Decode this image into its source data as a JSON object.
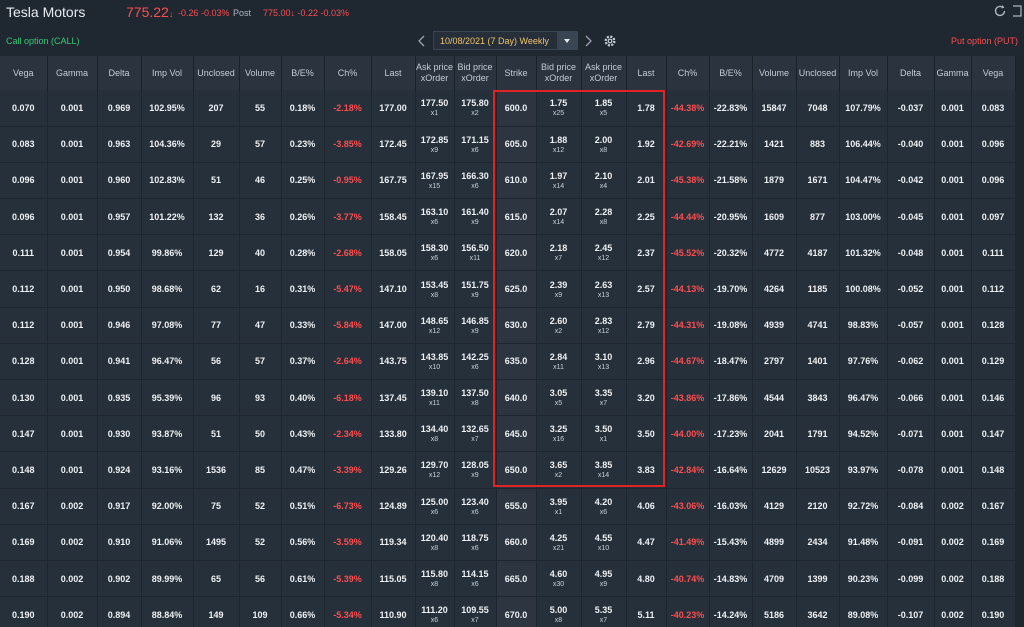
{
  "header": {
    "title": "Tesla Motors",
    "price": "775.22",
    "change": "-0.26 -0.03%",
    "post_label": "Post",
    "post_price": "775.00↓ -0.22 -0.03%"
  },
  "options_bar": {
    "call_label": "Call option  (CALL)",
    "put_label": "Put option  (PUT)",
    "expiry": "10/08/2021 (7 Day) Weekly"
  },
  "columns": {
    "call": [
      "Vega",
      "Gamma",
      "Delta",
      "Imp Vol",
      "Unclosed",
      "Volume",
      "B/E%",
      "Ch%",
      "Last"
    ],
    "call_ask": [
      "Ask price",
      "xOrder"
    ],
    "call_bid": [
      "Bid price",
      "xOrder"
    ],
    "strike": "Strike",
    "put_bid": [
      "Bid price",
      "xOrder"
    ],
    "put_ask": [
      "Ask price",
      "xOrder"
    ],
    "put": [
      "Last",
      "Ch%",
      "B/E%",
      "Volume",
      "Unclosed",
      "Imp Vol",
      "Delta",
      "Gamma",
      "Vega"
    ]
  },
  "rows": [
    {
      "call": [
        "0.070",
        "0.001",
        "0.969",
        "102.95%",
        "207",
        "55",
        "0.18%",
        "-2.18%",
        "177.00"
      ],
      "ca": [
        "177.50",
        "x1"
      ],
      "cb": [
        "175.80",
        "x2"
      ],
      "strike": "600.0",
      "pb": [
        "1.75",
        "x25"
      ],
      "pa": [
        "1.85",
        "x5"
      ],
      "put": [
        "1.78",
        "-44.38%",
        "-22.83%",
        "15847",
        "7048",
        "107.79%",
        "-0.037",
        "0.001",
        "0.083"
      ]
    },
    {
      "call": [
        "0.083",
        "0.001",
        "0.963",
        "104.36%",
        "29",
        "57",
        "0.23%",
        "-3.85%",
        "172.45"
      ],
      "ca": [
        "172.85",
        "x9"
      ],
      "cb": [
        "171.15",
        "x6"
      ],
      "strike": "605.0",
      "pb": [
        "1.88",
        "x12"
      ],
      "pa": [
        "2.00",
        "x8"
      ],
      "put": [
        "1.92",
        "-42.69%",
        "-22.21%",
        "1421",
        "883",
        "106.44%",
        "-0.040",
        "0.001",
        "0.096"
      ]
    },
    {
      "call": [
        "0.096",
        "0.001",
        "0.960",
        "102.83%",
        "51",
        "46",
        "0.25%",
        "-0.95%",
        "167.75"
      ],
      "ca": [
        "167.95",
        "x15"
      ],
      "cb": [
        "166.30",
        "x6"
      ],
      "strike": "610.0",
      "pb": [
        "1.97",
        "x14"
      ],
      "pa": [
        "2.10",
        "x4"
      ],
      "put": [
        "2.01",
        "-45.38%",
        "-21.58%",
        "1879",
        "1671",
        "104.47%",
        "-0.042",
        "0.001",
        "0.096"
      ]
    },
    {
      "call": [
        "0.096",
        "0.001",
        "0.957",
        "101.22%",
        "132",
        "36",
        "0.26%",
        "-3.77%",
        "158.45"
      ],
      "ca": [
        "163.10",
        "x6"
      ],
      "cb": [
        "161.40",
        "x9"
      ],
      "strike": "615.0",
      "pb": [
        "2.07",
        "x14"
      ],
      "pa": [
        "2.28",
        "x8"
      ],
      "put": [
        "2.25",
        "-44.44%",
        "-20.95%",
        "1609",
        "877",
        "103.00%",
        "-0.045",
        "0.001",
        "0.097"
      ]
    },
    {
      "call": [
        "0.111",
        "0.001",
        "0.954",
        "99.86%",
        "129",
        "40",
        "0.28%",
        "-2.68%",
        "158.05"
      ],
      "ca": [
        "158.30",
        "x6"
      ],
      "cb": [
        "156.50",
        "x11"
      ],
      "strike": "620.0",
      "pb": [
        "2.18",
        "x7"
      ],
      "pa": [
        "2.45",
        "x12"
      ],
      "put": [
        "2.37",
        "-45.52%",
        "-20.32%",
        "4772",
        "4187",
        "101.32%",
        "-0.048",
        "0.001",
        "0.111"
      ]
    },
    {
      "call": [
        "0.112",
        "0.001",
        "0.950",
        "98.68%",
        "62",
        "16",
        "0.31%",
        "-5.47%",
        "147.10"
      ],
      "ca": [
        "153.45",
        "x8"
      ],
      "cb": [
        "151.75",
        "x9"
      ],
      "strike": "625.0",
      "pb": [
        "2.39",
        "x9"
      ],
      "pa": [
        "2.63",
        "x13"
      ],
      "put": [
        "2.57",
        "-44.13%",
        "-19.70%",
        "4264",
        "1185",
        "100.08%",
        "-0.052",
        "0.001",
        "0.112"
      ]
    },
    {
      "call": [
        "0.112",
        "0.001",
        "0.946",
        "97.08%",
        "77",
        "47",
        "0.33%",
        "-5.84%",
        "147.00"
      ],
      "ca": [
        "148.65",
        "x12"
      ],
      "cb": [
        "146.85",
        "x9"
      ],
      "strike": "630.0",
      "pb": [
        "2.60",
        "x2"
      ],
      "pa": [
        "2.83",
        "x12"
      ],
      "put": [
        "2.79",
        "-44.31%",
        "-19.08%",
        "4939",
        "4741",
        "98.83%",
        "-0.057",
        "0.001",
        "0.128"
      ]
    },
    {
      "call": [
        "0.128",
        "0.001",
        "0.941",
        "96.47%",
        "56",
        "57",
        "0.37%",
        "-2.64%",
        "143.75"
      ],
      "ca": [
        "143.85",
        "x10"
      ],
      "cb": [
        "142.25",
        "x6"
      ],
      "strike": "635.0",
      "pb": [
        "2.84",
        "x11"
      ],
      "pa": [
        "3.10",
        "x13"
      ],
      "put": [
        "2.96",
        "-44.67%",
        "-18.47%",
        "2797",
        "1401",
        "97.76%",
        "-0.062",
        "0.001",
        "0.129"
      ]
    },
    {
      "call": [
        "0.130",
        "0.001",
        "0.935",
        "95.39%",
        "96",
        "93",
        "0.40%",
        "-6.18%",
        "137.45"
      ],
      "ca": [
        "139.10",
        "x11"
      ],
      "cb": [
        "137.50",
        "x8"
      ],
      "strike": "640.0",
      "pb": [
        "3.05",
        "x5"
      ],
      "pa": [
        "3.35",
        "x7"
      ],
      "put": [
        "3.20",
        "-43.86%",
        "-17.86%",
        "4544",
        "3843",
        "96.47%",
        "-0.066",
        "0.001",
        "0.146"
      ]
    },
    {
      "call": [
        "0.147",
        "0.001",
        "0.930",
        "93.87%",
        "51",
        "50",
        "0.43%",
        "-2.34%",
        "133.80"
      ],
      "ca": [
        "134.40",
        "x8"
      ],
      "cb": [
        "132.65",
        "x7"
      ],
      "strike": "645.0",
      "pb": [
        "3.25",
        "x16"
      ],
      "pa": [
        "3.50",
        "x1"
      ],
      "put": [
        "3.50",
        "-44.00%",
        "-17.23%",
        "2041",
        "1791",
        "94.52%",
        "-0.071",
        "0.001",
        "0.147"
      ]
    },
    {
      "call": [
        "0.148",
        "0.001",
        "0.924",
        "93.16%",
        "1536",
        "85",
        "0.47%",
        "-3.39%",
        "129.26"
      ],
      "ca": [
        "129.70",
        "x12"
      ],
      "cb": [
        "128.05",
        "x9"
      ],
      "strike": "650.0",
      "pb": [
        "3.65",
        "x2"
      ],
      "pa": [
        "3.85",
        "x14"
      ],
      "put": [
        "3.83",
        "-42.84%",
        "-16.64%",
        "12629",
        "10523",
        "93.97%",
        "-0.078",
        "0.001",
        "0.148"
      ]
    },
    {
      "call": [
        "0.167",
        "0.002",
        "0.917",
        "92.00%",
        "75",
        "52",
        "0.51%",
        "-6.73%",
        "124.89"
      ],
      "ca": [
        "125.00",
        "x6"
      ],
      "cb": [
        "123.40",
        "x6"
      ],
      "strike": "655.0",
      "pb": [
        "3.95",
        "x1"
      ],
      "pa": [
        "4.20",
        "x6"
      ],
      "put": [
        "4.06",
        "-43.06%",
        "-16.03%",
        "4129",
        "2120",
        "92.72%",
        "-0.084",
        "0.002",
        "0.167"
      ]
    },
    {
      "call": [
        "0.169",
        "0.002",
        "0.910",
        "91.06%",
        "1495",
        "52",
        "0.56%",
        "-3.59%",
        "119.34"
      ],
      "ca": [
        "120.40",
        "x8"
      ],
      "cb": [
        "118.75",
        "x6"
      ],
      "strike": "660.0",
      "pb": [
        "4.25",
        "x21"
      ],
      "pa": [
        "4.55",
        "x10"
      ],
      "put": [
        "4.47",
        "-41.49%",
        "-15.43%",
        "4899",
        "2434",
        "91.48%",
        "-0.091",
        "0.002",
        "0.169"
      ]
    },
    {
      "call": [
        "0.188",
        "0.002",
        "0.902",
        "89.99%",
        "65",
        "56",
        "0.61%",
        "-5.39%",
        "115.05"
      ],
      "ca": [
        "115.80",
        "x8"
      ],
      "cb": [
        "114.15",
        "x6"
      ],
      "strike": "665.0",
      "pb": [
        "4.60",
        "x30"
      ],
      "pa": [
        "4.95",
        "x9"
      ],
      "put": [
        "4.80",
        "-40.74%",
        "-14.83%",
        "4709",
        "1399",
        "90.23%",
        "-0.099",
        "0.002",
        "0.188"
      ]
    },
    {
      "call": [
        "0.190",
        "0.002",
        "0.894",
        "88.84%",
        "149",
        "109",
        "0.66%",
        "-5.34%",
        "110.90"
      ],
      "ca": [
        "111.20",
        "x6"
      ],
      "cb": [
        "109.55",
        "x7"
      ],
      "strike": "670.0",
      "pb": [
        "5.00",
        "x8"
      ],
      "pa": [
        "5.35",
        "x7"
      ],
      "put": [
        "5.11",
        "-40.23%",
        "-14.24%",
        "5186",
        "3642",
        "89.08%",
        "-0.107",
        "0.002",
        "0.190"
      ]
    }
  ],
  "icons": [
    "refresh-icon",
    "external-icon",
    "chevron-left-icon",
    "chevron-right-icon",
    "caret-down-icon",
    "gear-icon"
  ],
  "colors": {
    "negative": "#ff4d4f",
    "call": "#38c872",
    "expiry": "#f0c36a",
    "highlight": "#e02424"
  }
}
